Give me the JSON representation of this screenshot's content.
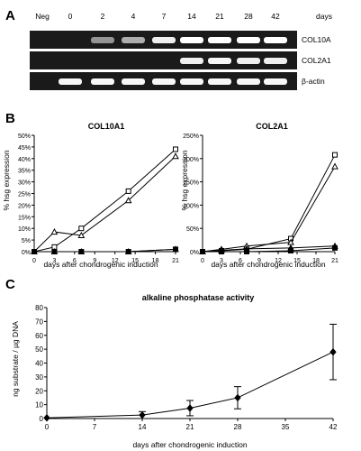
{
  "panel_labels": {
    "a": "A",
    "b": "B",
    "c": "C"
  },
  "gel": {
    "lane_labels": [
      "Neg",
      "0",
      "2",
      "4",
      "7",
      "14",
      "21",
      "28",
      "42"
    ],
    "unit_label": "days",
    "rows": [
      {
        "label": "COL10A",
        "intensity": [
          0,
          0,
          0.35,
          0.5,
          0.9,
          1,
          1,
          1,
          1
        ]
      },
      {
        "label": "COL2A1",
        "intensity": [
          0,
          0,
          0,
          0,
          0,
          0.9,
          0.95,
          0.9,
          0.9
        ]
      },
      {
        "label": "β-actin",
        "intensity": [
          0,
          0.95,
          0.95,
          0.95,
          0.95,
          0.95,
          0.95,
          0.95,
          0.95
        ]
      }
    ]
  },
  "chart_data": [
    {
      "type": "line",
      "title": "COL10A1",
      "xlabel": "days after chondrogenic induction",
      "ylabel": "% hsg expression",
      "x": [
        0,
        3,
        7,
        14,
        21
      ],
      "xticks": [
        0,
        3,
        6,
        9,
        12,
        15,
        18,
        21
      ],
      "yticks": [
        "0%",
        "5%",
        "10%",
        "15%",
        "20%",
        "25%",
        "30%",
        "35%",
        "40%",
        "45%",
        "50%"
      ],
      "xlim": [
        0,
        21
      ],
      "ylim": [
        0,
        50
      ],
      "unit": "%",
      "series": [
        {
          "marker": "open-square",
          "values": [
            0,
            2,
            10,
            26,
            44
          ]
        },
        {
          "marker": "open-triangle",
          "values": [
            0,
            8.5,
            7,
            22,
            41
          ]
        },
        {
          "marker": "filled-square",
          "values": [
            0,
            0,
            0,
            0,
            1
          ]
        },
        {
          "marker": "filled-triangle",
          "values": [
            0,
            0,
            0,
            0,
            1
          ]
        }
      ]
    },
    {
      "type": "line",
      "title": "COL2A1",
      "xlabel": "days after chondrogenic induction",
      "ylabel": "% hsg expression",
      "x": [
        0,
        3,
        7,
        14,
        21
      ],
      "xticks": [
        0,
        3,
        6,
        9,
        12,
        15,
        18,
        21
      ],
      "yticks": [
        "0%",
        "50%",
        "100%",
        "150%",
        "200%",
        "250%"
      ],
      "xlim": [
        0,
        21
      ],
      "ylim": [
        0,
        250
      ],
      "unit": "%",
      "series": [
        {
          "marker": "open-square",
          "values": [
            0,
            2,
            5,
            28,
            208
          ]
        },
        {
          "marker": "open-triangle",
          "values": [
            0,
            5,
            12,
            20,
            183
          ]
        },
        {
          "marker": "filled-square",
          "values": [
            0,
            0,
            0,
            2,
            8
          ]
        },
        {
          "marker": "filled-triangle",
          "values": [
            0,
            3,
            6,
            8,
            12
          ]
        }
      ]
    },
    {
      "type": "line",
      "title": "alkaline phosphatase activity",
      "xlabel": "days after chondrogenic induction",
      "ylabel": "ng substrate / µg DNA",
      "x": [
        0,
        14,
        21,
        28,
        42
      ],
      "xticks": [
        0,
        7,
        14,
        21,
        28,
        35,
        42
      ],
      "yticks": [
        0,
        10,
        20,
        30,
        40,
        50,
        60,
        70,
        80
      ],
      "xlim": [
        0,
        42
      ],
      "ylim": [
        0,
        80
      ],
      "series": [
        {
          "marker": "filled-diamond",
          "values": [
            0.5,
            2.5,
            7.5,
            15,
            48
          ],
          "errors": [
            0,
            2.5,
            5.5,
            8,
            20
          ]
        }
      ]
    }
  ]
}
